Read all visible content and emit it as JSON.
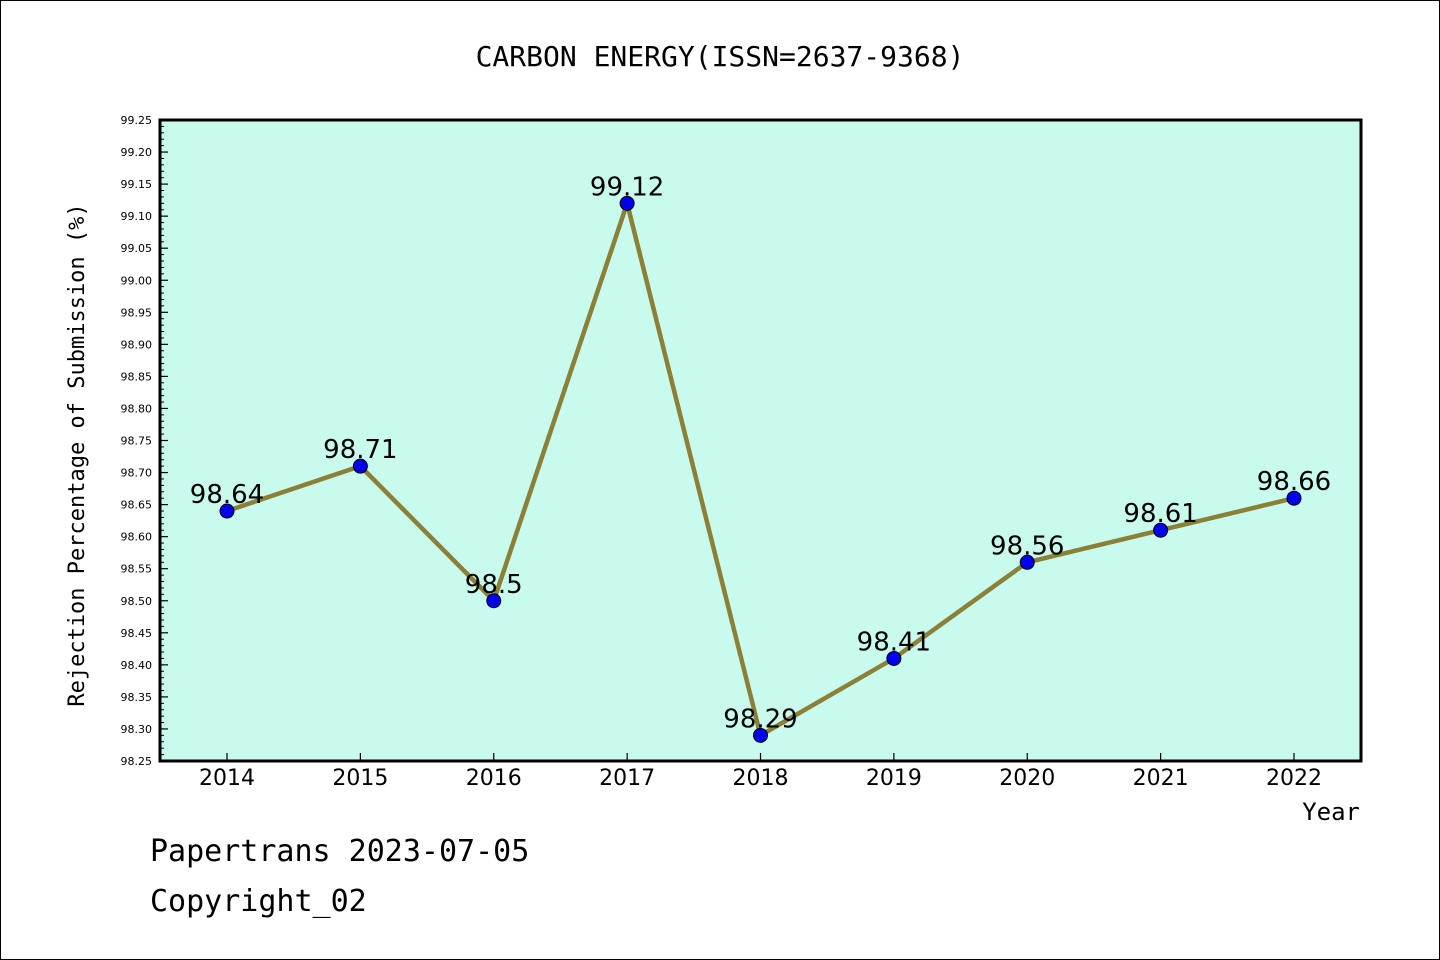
{
  "footer": {
    "line1": "Papertrans 2023-07-05",
    "line2": "Copyright_02"
  },
  "colors": {
    "plot_background": "#c8fbee",
    "line": "#8b8035",
    "marker": "#0000ee"
  },
  "chart_data": {
    "type": "line",
    "title": "CARBON ENERGY(ISSN=2637-9368)",
    "xlabel": "Year",
    "ylabel": "Rejection Percentage of Submission (%)",
    "categories": [
      "2014",
      "2015",
      "2016",
      "2017",
      "2018",
      "2019",
      "2020",
      "2021",
      "2022"
    ],
    "series": [
      {
        "values": [
          98.64,
          98.71,
          98.5,
          99.12,
          98.29,
          98.41,
          98.56,
          98.61,
          98.66
        ]
      }
    ],
    "data_labels": [
      "98.64",
      "98.71",
      "98.5",
      "99.12",
      "98.29",
      "98.41",
      "98.56",
      "98.61",
      "98.66"
    ],
    "ylim": [
      98.25,
      99.25
    ],
    "y_ticks": [
      "98.25",
      "98.30",
      "98.35",
      "98.40",
      "98.45",
      "98.50",
      "98.55",
      "98.60",
      "98.65",
      "98.70",
      "98.75",
      "98.80",
      "98.85",
      "98.90",
      "98.95",
      "99.00",
      "99.05",
      "99.10",
      "99.15",
      "99.20",
      "99.25"
    ],
    "grid": false,
    "legend": "none"
  }
}
